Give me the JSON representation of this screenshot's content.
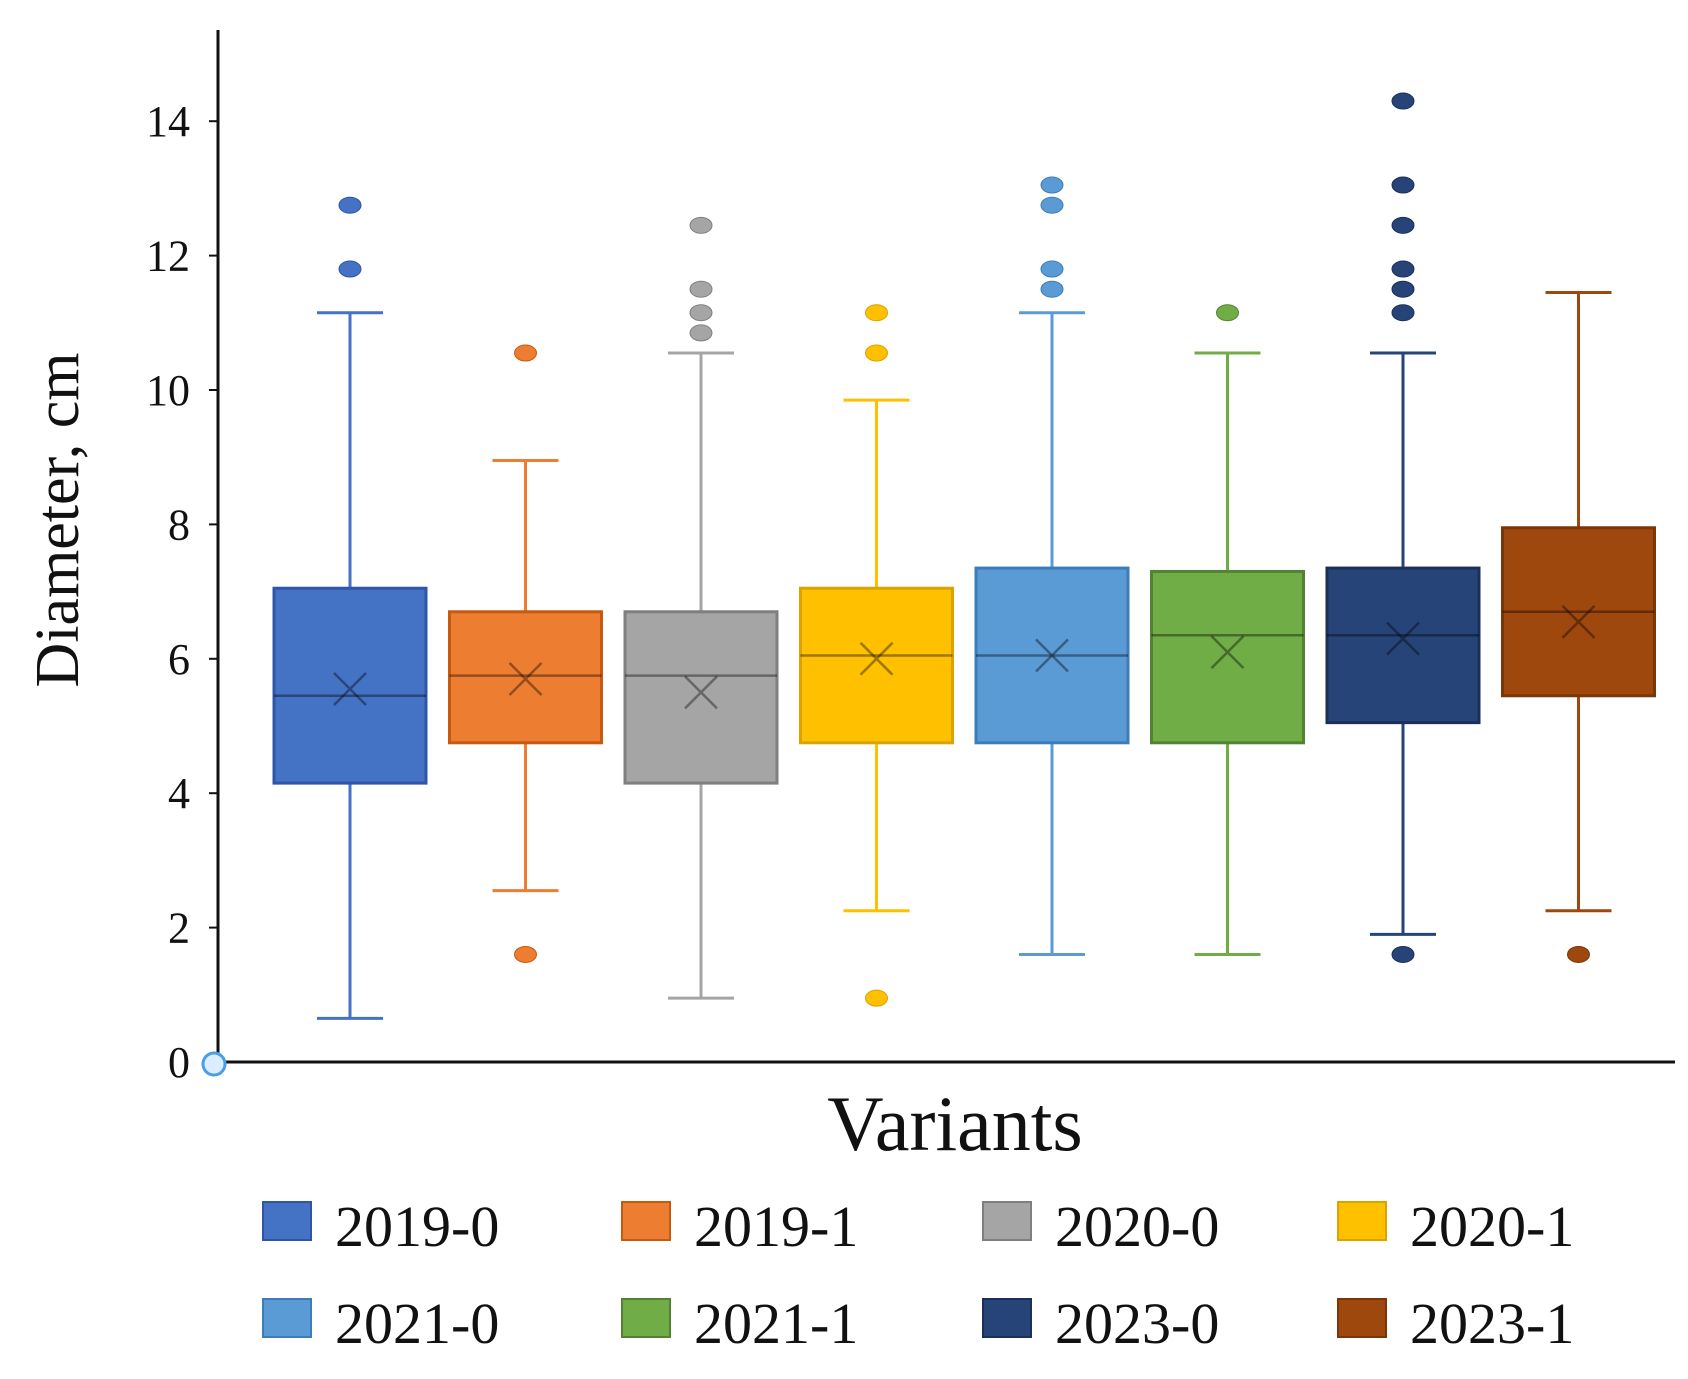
{
  "chart_data": {
    "type": "box",
    "title": "",
    "xlabel": "Variants",
    "ylabel": "Diameter, cm",
    "ylim": [
      0,
      15
    ],
    "yticks": [
      0,
      2,
      4,
      6,
      8,
      10,
      12,
      14
    ],
    "grid": false,
    "legend_position": "bottom",
    "series": [
      {
        "name": "2019-0",
        "color": "#4472C4",
        "edge": "#2F55A8",
        "min": 0.65,
        "q1": 4.15,
        "median": 5.45,
        "mean": 5.55,
        "q3": 7.05,
        "max": 11.15,
        "outliers": [
          11.8,
          12.75
        ]
      },
      {
        "name": "2019-1",
        "color": "#ED7D31",
        "edge": "#C55A11",
        "min": 2.55,
        "q1": 4.75,
        "median": 5.75,
        "mean": 5.7,
        "q3": 6.7,
        "max": 8.95,
        "outliers": [
          1.6,
          10.55
        ]
      },
      {
        "name": "2020-0",
        "color": "#A5A5A5",
        "edge": "#7F7F7F",
        "min": 0.95,
        "q1": 4.15,
        "median": 5.75,
        "mean": 5.5,
        "q3": 6.7,
        "max": 10.55,
        "outliers": [
          10.85,
          11.15,
          11.5,
          12.45
        ]
      },
      {
        "name": "2020-1",
        "color": "#FFC000",
        "edge": "#D9A300",
        "min": 2.25,
        "q1": 4.75,
        "median": 6.05,
        "mean": 6.0,
        "q3": 7.05,
        "max": 9.85,
        "outliers": [
          0.95,
          10.55,
          11.15
        ]
      },
      {
        "name": "2021-0",
        "color": "#5B9BD5",
        "edge": "#3E7CB8",
        "min": 1.6,
        "q1": 4.75,
        "median": 6.05,
        "mean": 6.05,
        "q3": 7.35,
        "max": 11.15,
        "outliers": [
          11.5,
          11.8,
          12.75,
          13.05
        ]
      },
      {
        "name": "2021-1",
        "color": "#70AD47",
        "edge": "#548235",
        "min": 1.6,
        "q1": 4.75,
        "median": 6.35,
        "mean": 6.1,
        "q3": 7.3,
        "max": 10.55,
        "outliers": [
          11.15
        ]
      },
      {
        "name": "2023-0",
        "color": "#264478",
        "edge": "#1B2F5A",
        "min": 1.9,
        "q1": 5.05,
        "median": 6.35,
        "mean": 6.3,
        "q3": 7.35,
        "max": 10.55,
        "outliers": [
          1.6,
          11.15,
          11.5,
          11.8,
          12.45,
          13.05,
          14.3
        ]
      },
      {
        "name": "2023-1",
        "color": "#9E480E",
        "edge": "#7A3508",
        "min": 2.25,
        "q1": 5.45,
        "median": 6.7,
        "mean": 6.55,
        "q3": 7.95,
        "max": 11.45,
        "outliers": [
          1.6
        ]
      }
    ]
  }
}
